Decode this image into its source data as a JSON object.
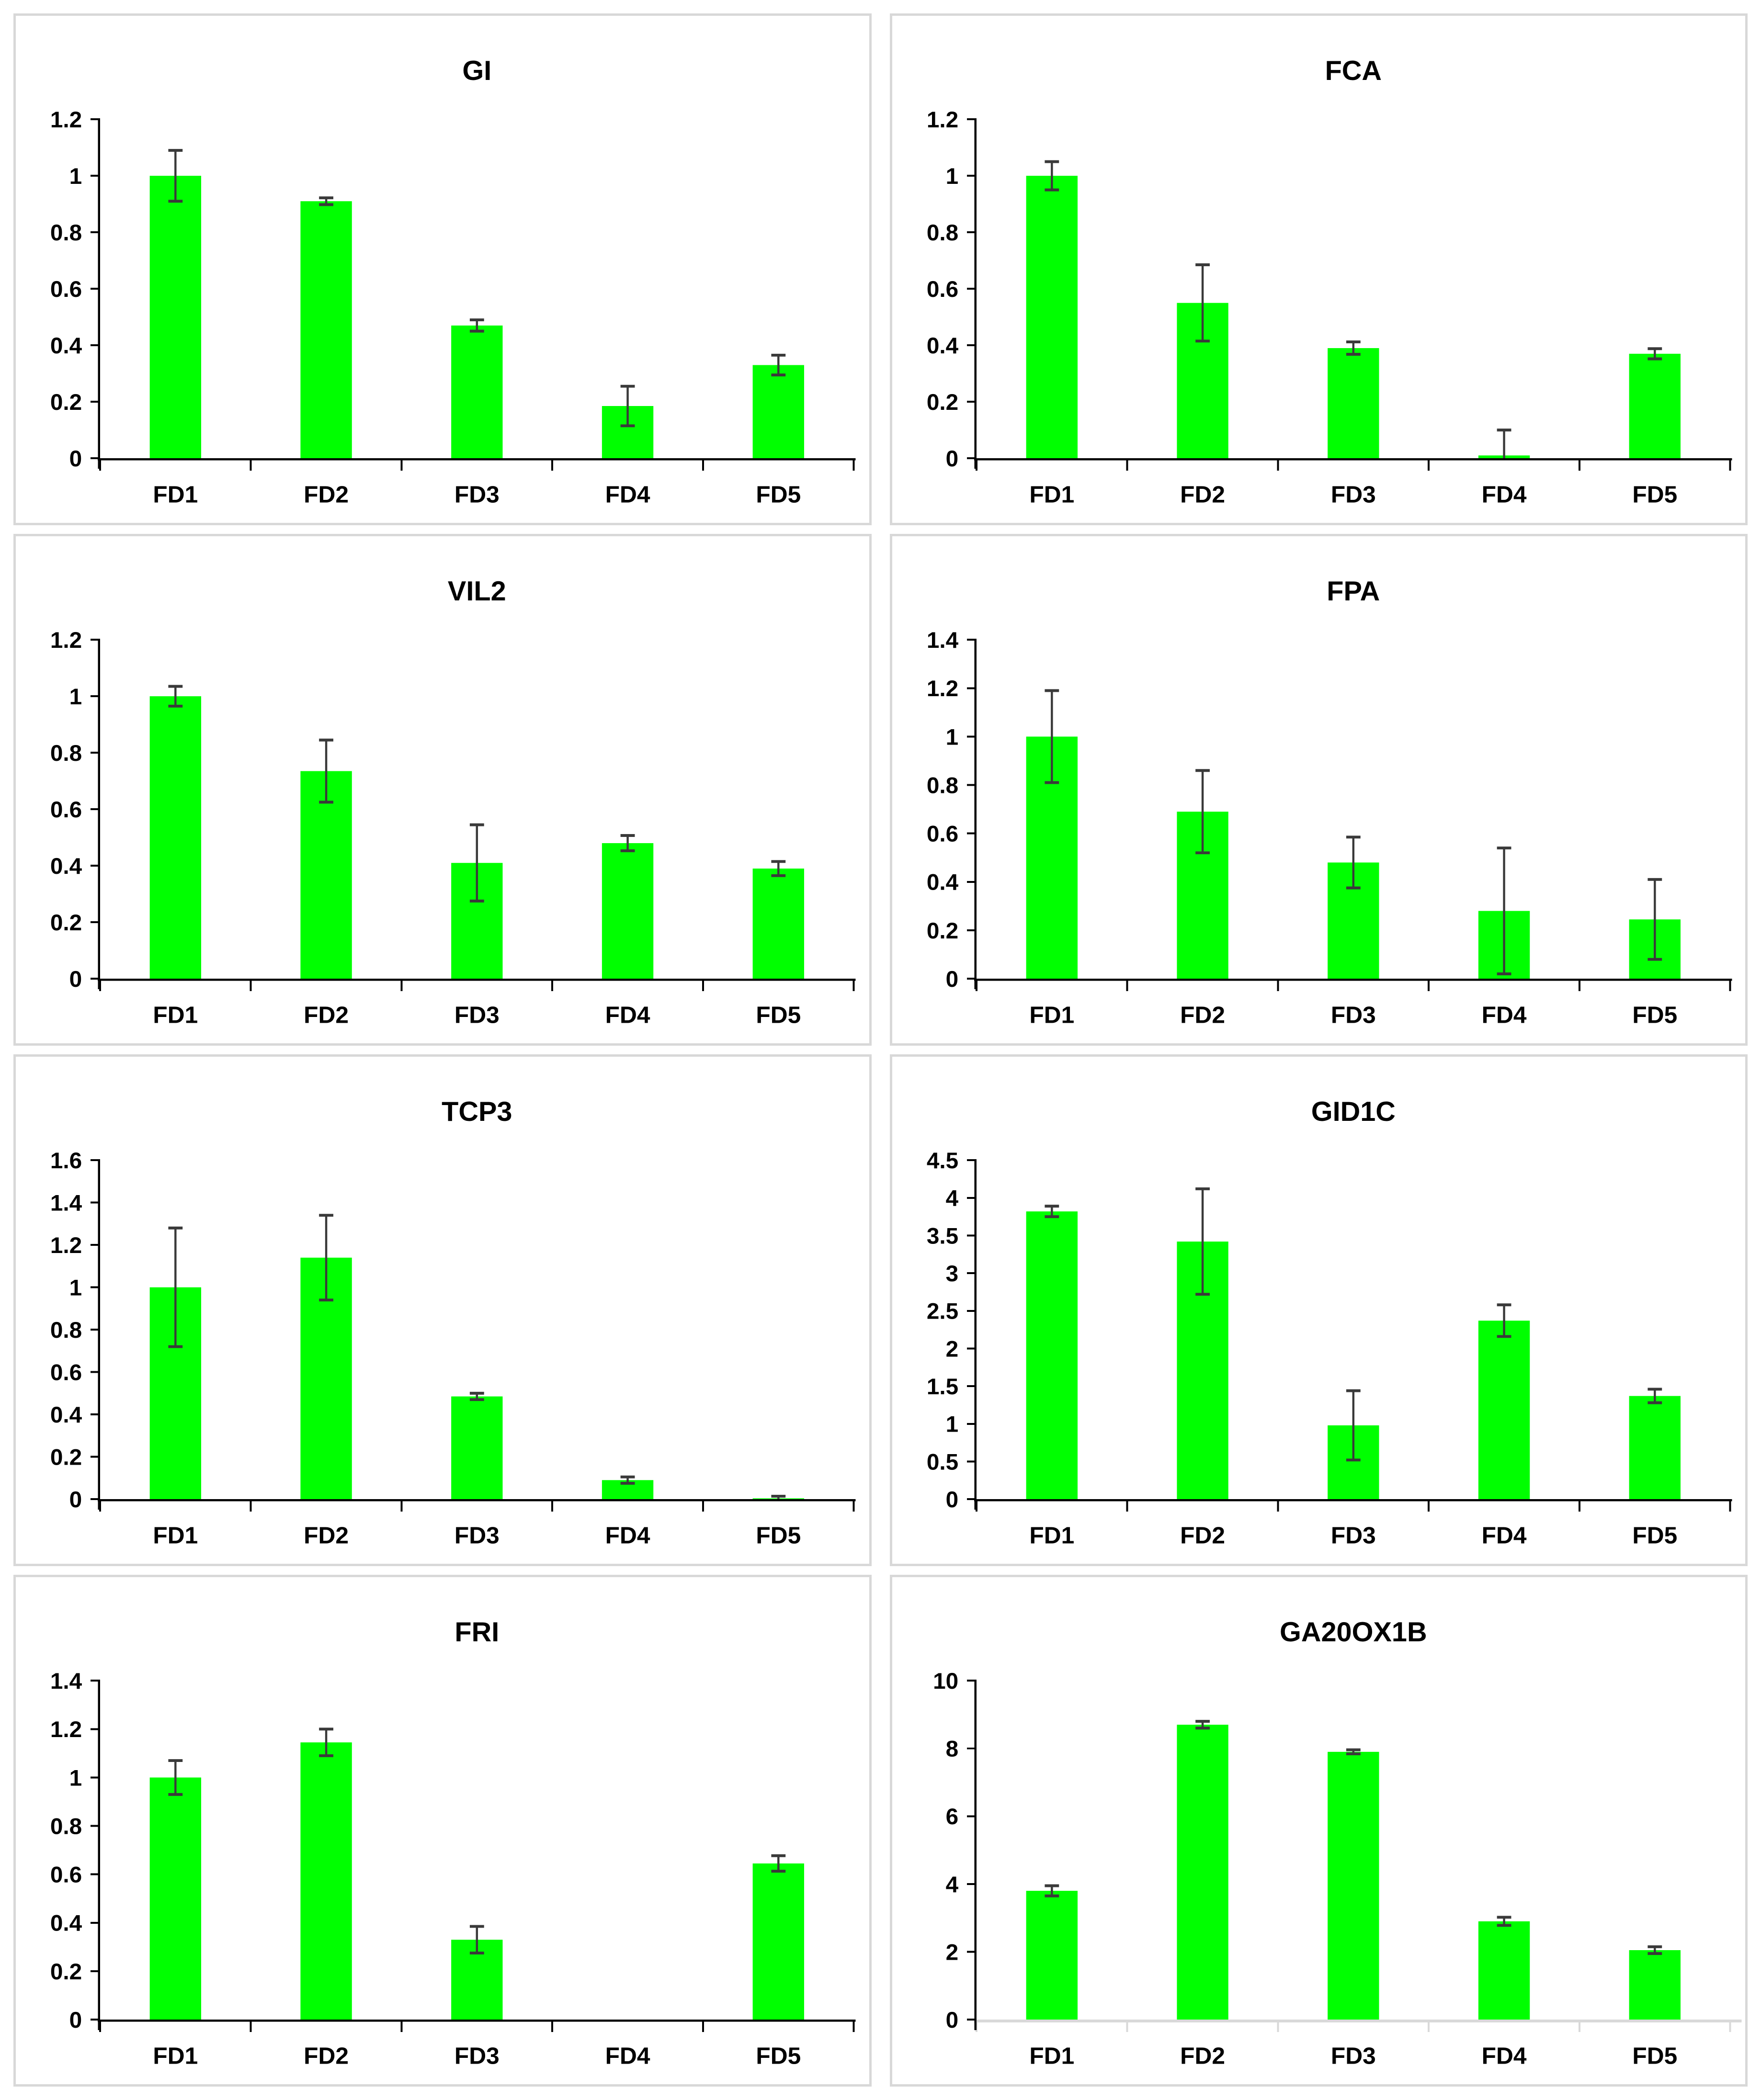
{
  "page": {
    "background": "#ffffff",
    "panel_border_color": "#d8d8d8",
    "layout": "2 columns x 4 rows grid of bar chart panels",
    "panel_titles": [
      "GI",
      "FCA",
      "VIL2",
      "FPA",
      "TCP3",
      "GID1C",
      "FRI",
      "GA20OX1B"
    ]
  },
  "style_colors": {
    "bar_fill": "#00ff00",
    "error_bar": "#3a3a3a",
    "axis": "#000000",
    "light_axis": "#d9d9d9",
    "text": "#000000"
  },
  "chart_data": [
    {
      "type": "bar",
      "title": "GI",
      "categories": [
        "FD1",
        "FD2",
        "FD3",
        "FD4",
        "FD5"
      ],
      "values": [
        1.0,
        0.91,
        0.47,
        0.185,
        0.33
      ],
      "errors": [
        0.09,
        0.012,
        0.02,
        0.07,
        0.035
      ],
      "ylim": [
        0,
        1.2
      ],
      "ytick_values": [
        0,
        0.2,
        0.4,
        0.6,
        0.8,
        1,
        1.2
      ],
      "ytick_labels": [
        "0",
        "0.2",
        "0.4",
        "0.6",
        "0.8",
        "1",
        "1.2"
      ],
      "xlabel": "",
      "ylabel": "",
      "grid": false,
      "legend": false,
      "bar_color": "#00ff00"
    },
    {
      "type": "bar",
      "title": "FCA",
      "categories": [
        "FD1",
        "FD2",
        "FD3",
        "FD4",
        "FD5"
      ],
      "values": [
        1.0,
        0.55,
        0.39,
        0.01,
        0.37
      ],
      "errors": [
        0.05,
        0.135,
        0.022,
        0.09,
        0.018
      ],
      "ylim": [
        0,
        1.2
      ],
      "ytick_values": [
        0,
        0.2,
        0.4,
        0.6,
        0.8,
        1,
        1.2
      ],
      "ytick_labels": [
        "0",
        "0.2",
        "0.4",
        "0.6",
        "0.8",
        "1",
        "1.2"
      ],
      "xlabel": "",
      "ylabel": "",
      "grid": false,
      "legend": false,
      "bar_color": "#00ff00"
    },
    {
      "type": "bar",
      "title": "VIL2",
      "categories": [
        "FD1",
        "FD2",
        "FD3",
        "FD4",
        "FD5"
      ],
      "values": [
        1.0,
        0.735,
        0.41,
        0.48,
        0.39
      ],
      "errors": [
        0.035,
        0.11,
        0.135,
        0.027,
        0.025
      ],
      "ylim": [
        0,
        1.2
      ],
      "ytick_values": [
        0,
        0.2,
        0.4,
        0.6,
        0.8,
        1,
        1.2
      ],
      "ytick_labels": [
        "0",
        "0.2",
        "0.4",
        "0.6",
        "0.8",
        "1",
        "1.2"
      ],
      "xlabel": "",
      "ylabel": "",
      "grid": false,
      "legend": false,
      "bar_color": "#00ff00"
    },
    {
      "type": "bar",
      "title": "FPA",
      "categories": [
        "FD1",
        "FD2",
        "FD3",
        "FD4",
        "FD5"
      ],
      "values": [
        1.0,
        0.69,
        0.48,
        0.28,
        0.245
      ],
      "errors": [
        0.19,
        0.17,
        0.105,
        0.26,
        0.165
      ],
      "ylim": [
        0,
        1.4
      ],
      "ytick_values": [
        0,
        0.2,
        0.4,
        0.6,
        0.8,
        1,
        1.2,
        1.4
      ],
      "ytick_labels": [
        "0",
        "0.2",
        "0.4",
        "0.6",
        "0.8",
        "1",
        "1.2",
        "1.4"
      ],
      "xlabel": "",
      "ylabel": "",
      "grid": false,
      "legend": false,
      "bar_color": "#00ff00"
    },
    {
      "type": "bar",
      "title": "TCP3",
      "categories": [
        "FD1",
        "FD2",
        "FD3",
        "FD4",
        "FD5"
      ],
      "values": [
        1.0,
        1.14,
        0.485,
        0.09,
        0.004
      ],
      "errors": [
        0.28,
        0.2,
        0.015,
        0.015,
        0.01
      ],
      "ylim": [
        0,
        1.6
      ],
      "ytick_values": [
        0,
        0.2,
        0.4,
        0.6,
        0.8,
        1,
        1.2,
        1.4,
        1.6
      ],
      "ytick_labels": [
        "0",
        "0.2",
        "0.4",
        "0.6",
        "0.8",
        "1",
        "1.2",
        "1.4",
        "1.6"
      ],
      "xlabel": "",
      "ylabel": "",
      "grid": false,
      "legend": false,
      "bar_color": "#00ff00"
    },
    {
      "type": "bar",
      "title": "GID1C",
      "categories": [
        "FD1",
        "FD2",
        "FD3",
        "FD4",
        "FD5"
      ],
      "values": [
        3.82,
        3.42,
        0.98,
        2.37,
        1.37
      ],
      "errors": [
        0.07,
        0.7,
        0.46,
        0.21,
        0.09
      ],
      "ylim": [
        0,
        4.5
      ],
      "ytick_values": [
        0,
        0.5,
        1,
        1.5,
        2,
        2.5,
        3,
        3.5,
        4,
        4.5
      ],
      "ytick_labels": [
        "0",
        "0.5",
        "1",
        "1.5",
        "2",
        "2.5",
        "3",
        "3.5",
        "4",
        "4.5"
      ],
      "xlabel": "",
      "ylabel": "",
      "grid": false,
      "legend": false,
      "bar_color": "#00ff00"
    },
    {
      "type": "bar",
      "title": "FRI",
      "categories": [
        "FD1",
        "FD2",
        "FD3",
        "FD4",
        "FD5"
      ],
      "values": [
        1.0,
        1.145,
        0.33,
        0,
        0.645
      ],
      "errors": [
        0.07,
        0.055,
        0.055,
        0,
        0.032
      ],
      "ylim": [
        0,
        1.4
      ],
      "ytick_values": [
        0,
        0.2,
        0.4,
        0.6,
        0.8,
        1,
        1.2,
        1.4
      ],
      "ytick_labels": [
        "0",
        "0.2",
        "0.4",
        "0.6",
        "0.8",
        "1",
        "1.2",
        "1.4"
      ],
      "xlabel": "",
      "ylabel": "",
      "grid": false,
      "legend": false,
      "bar_color": "#00ff00"
    },
    {
      "type": "bar",
      "title": "GA20OX1B",
      "categories": [
        "FD1",
        "FD2",
        "FD3",
        "FD4",
        "FD5"
      ],
      "values": [
        3.8,
        8.7,
        7.9,
        2.9,
        2.05
      ],
      "errors": [
        0.15,
        0.1,
        0.06,
        0.12,
        0.1
      ],
      "ylim": [
        0,
        10
      ],
      "ytick_values": [
        0,
        2,
        4,
        6,
        8,
        10
      ],
      "ytick_labels": [
        "0",
        "2",
        "4",
        "6",
        "8",
        "10"
      ],
      "xlabel": "",
      "ylabel": "",
      "grid": false,
      "legend": false,
      "bar_color": "#00ff00",
      "x_axis_color": "#d9d9d9"
    }
  ]
}
